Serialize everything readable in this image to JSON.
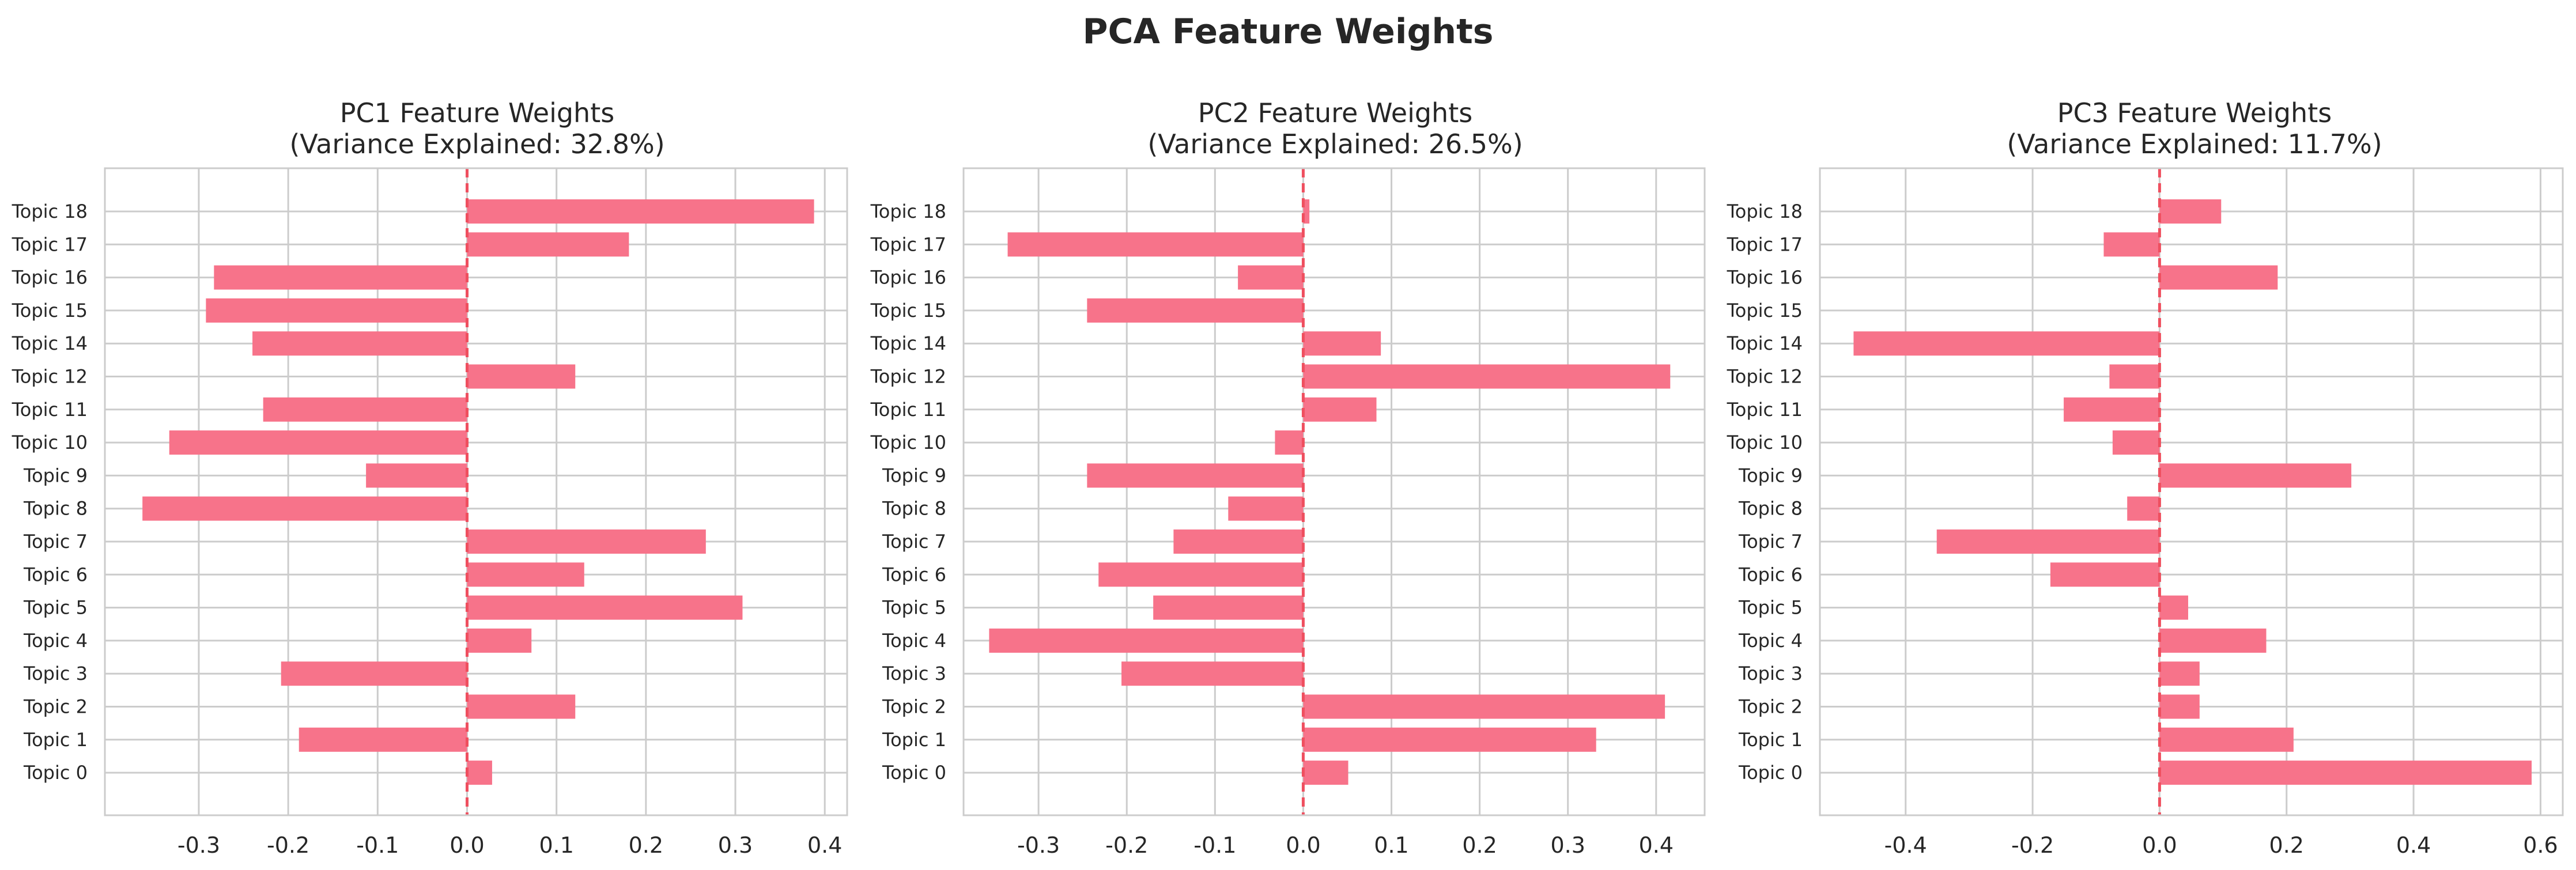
{
  "title": "PCA Feature Weights",
  "colors": {
    "bar": "#f7738a",
    "zero_line": "#ef4f5f",
    "grid": "#cccccc",
    "frame": "#cccccc",
    "text": "#262626"
  },
  "chart_data": [
    {
      "type": "bar",
      "orientation": "horizontal",
      "title_line1": "PC1 Feature Weights",
      "title_line2": "(Variance Explained: 32.8%)",
      "xlabel": "",
      "ylabel": "",
      "categories": [
        "Topic 0",
        "Topic 1",
        "Topic 2",
        "Topic 3",
        "Topic 4",
        "Topic 5",
        "Topic 6",
        "Topic 7",
        "Topic 8",
        "Topic 9",
        "Topic 10",
        "Topic 11",
        "Topic 12",
        "Topic 14",
        "Topic 15",
        "Topic 16",
        "Topic 17",
        "Topic 18"
      ],
      "values": [
        0.028,
        -0.188,
        0.121,
        -0.208,
        0.072,
        0.308,
        0.131,
        0.267,
        -0.363,
        -0.113,
        -0.333,
        -0.228,
        0.121,
        -0.24,
        -0.292,
        -0.283,
        0.181,
        0.388
      ],
      "xlim": [
        -0.405,
        0.425
      ],
      "xticks": [
        -0.3,
        -0.2,
        -0.1,
        0.0,
        0.1,
        0.2,
        0.3,
        0.4
      ],
      "xtick_labels": [
        "-0.3",
        "-0.2",
        "-0.1",
        "0.0",
        "0.1",
        "0.2",
        "0.3",
        "0.4"
      ],
      "zero_line": "dashed",
      "grid": true
    },
    {
      "type": "bar",
      "orientation": "horizontal",
      "title_line1": "PC2 Feature Weights",
      "title_line2": "(Variance Explained: 26.5%)",
      "xlabel": "",
      "ylabel": "",
      "categories": [
        "Topic 0",
        "Topic 1",
        "Topic 2",
        "Topic 3",
        "Topic 4",
        "Topic 5",
        "Topic 6",
        "Topic 7",
        "Topic 8",
        "Topic 9",
        "Topic 10",
        "Topic 11",
        "Topic 12",
        "Topic 14",
        "Topic 15",
        "Topic 16",
        "Topic 17",
        "Topic 18"
      ],
      "values": [
        0.051,
        0.332,
        0.41,
        -0.206,
        -0.356,
        -0.17,
        -0.232,
        -0.147,
        -0.085,
        -0.245,
        -0.032,
        0.083,
        0.416,
        0.088,
        -0.245,
        -0.074,
        -0.335,
        0.007
      ],
      "xlim": [
        -0.385,
        0.455
      ],
      "xticks": [
        -0.3,
        -0.2,
        -0.1,
        0.0,
        0.1,
        0.2,
        0.3,
        0.4
      ],
      "xtick_labels": [
        "-0.3",
        "-0.2",
        "-0.1",
        "0.0",
        "0.1",
        "0.2",
        "0.3",
        "0.4"
      ],
      "zero_line": "dashed",
      "grid": true
    },
    {
      "type": "bar",
      "orientation": "horizontal",
      "title_line1": "PC3 Feature Weights",
      "title_line2": "(Variance Explained: 11.7%)",
      "xlabel": "",
      "ylabel": "",
      "categories": [
        "Topic 0",
        "Topic 1",
        "Topic 2",
        "Topic 3",
        "Topic 4",
        "Topic 5",
        "Topic 6",
        "Topic 7",
        "Topic 8",
        "Topic 9",
        "Topic 10",
        "Topic 11",
        "Topic 12",
        "Topic 14",
        "Topic 15",
        "Topic 16",
        "Topic 17",
        "Topic 18"
      ],
      "values": [
        0.586,
        0.211,
        0.063,
        0.063,
        0.168,
        0.045,
        -0.172,
        -0.351,
        -0.051,
        0.302,
        -0.074,
        -0.151,
        -0.079,
        -0.482,
        0.0,
        0.186,
        -0.088,
        0.097
      ],
      "xlim": [
        -0.535,
        0.635
      ],
      "xticks": [
        -0.4,
        -0.2,
        0.0,
        0.2,
        0.4,
        0.6
      ],
      "xtick_labels": [
        "-0.4",
        "-0.2",
        "0.0",
        "0.2",
        "0.4",
        "0.6"
      ],
      "zero_line": "dashed",
      "grid": true
    }
  ]
}
